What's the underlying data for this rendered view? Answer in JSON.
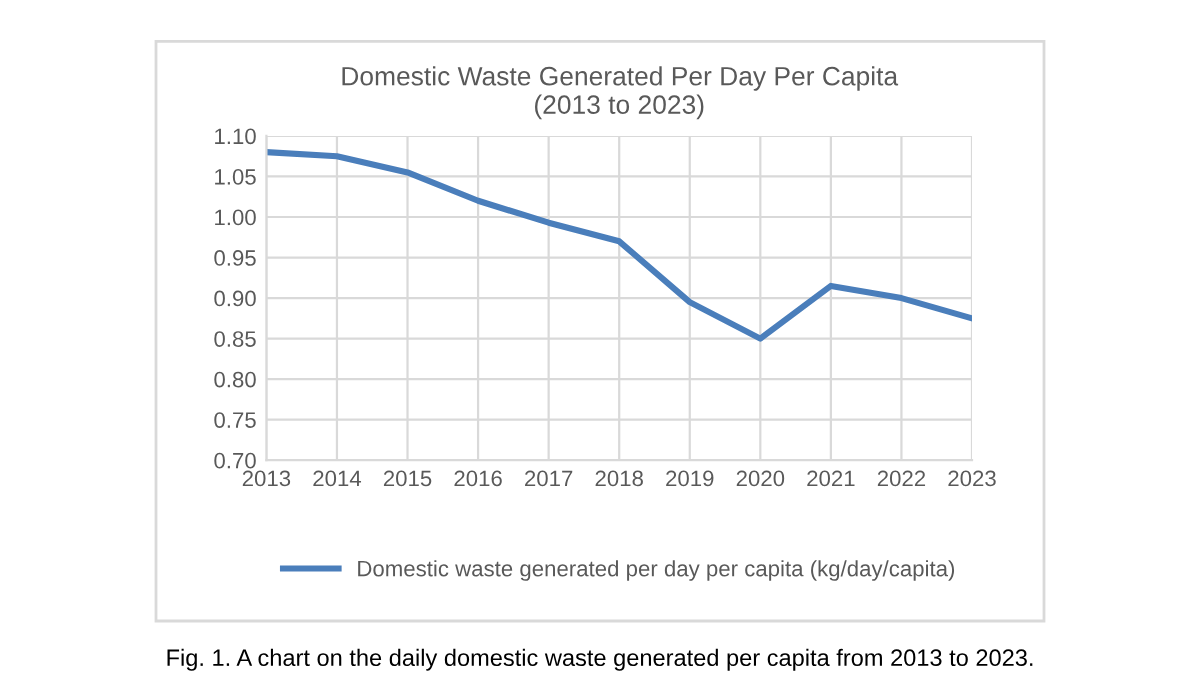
{
  "chart_data": {
    "type": "line",
    "title": "Domestic Waste Generated Per Day Per Capita\n(2013 to 2023)",
    "x": [
      2013,
      2014,
      2015,
      2016,
      2017,
      2018,
      2019,
      2020,
      2021,
      2022,
      2023
    ],
    "series": [
      {
        "name": "Domestic waste generated per day per capita (kg/day/capita)",
        "color": "#4a7ebb",
        "values": [
          1.08,
          1.075,
          1.055,
          1.02,
          0.993,
          0.97,
          0.895,
          0.85,
          0.915,
          0.9,
          0.875
        ]
      }
    ],
    "xlim": [
      2013,
      2023
    ],
    "xticks": [
      2013,
      2014,
      2015,
      2016,
      2017,
      2018,
      2019,
      2020,
      2021,
      2022,
      2023
    ],
    "ylim": [
      0.7,
      1.1
    ],
    "yticks": [
      {
        "value": 0.7,
        "label": "0.70"
      },
      {
        "value": 0.75,
        "label": "0.75"
      },
      {
        "value": 0.8,
        "label": "0.80"
      },
      {
        "value": 0.85,
        "label": "0.85"
      },
      {
        "value": 0.9,
        "label": "0.90"
      },
      {
        "value": 0.95,
        "label": "0.95"
      },
      {
        "value": 1.0,
        "label": "1.00"
      },
      {
        "value": 1.05,
        "label": "1.05"
      },
      {
        "value": 1.1,
        "label": "1.10"
      }
    ],
    "grid": true,
    "legend": "bottom",
    "marker": "none",
    "line_style": "solid",
    "annotations": [
      "Fig. 1. A chart on the daily domestic waste generated per capita from 2013 to 2023."
    ]
  }
}
